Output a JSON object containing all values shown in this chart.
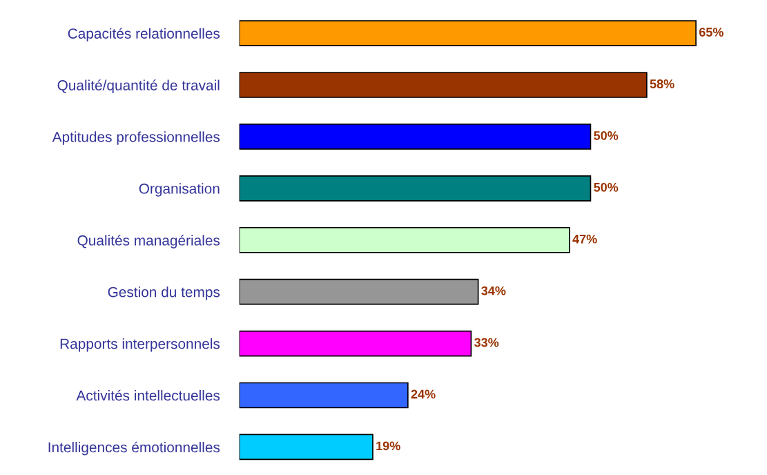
{
  "chart_data": {
    "type": "bar",
    "orientation": "horizontal",
    "categories": [
      "Capacités relationnelles",
      "Qualité/quantité de travail",
      "Aptitudes professionnelles",
      "Organisation",
      "Qualités managériales",
      "Gestion du temps",
      "Rapports interpersonnels",
      "Activités intellectuelles",
      "Intelligences émotionnelles"
    ],
    "values": [
      65,
      58,
      50,
      50,
      47,
      34,
      33,
      24,
      19
    ],
    "value_labels": [
      "65%",
      "58%",
      "50%",
      "50%",
      "47%",
      "34%",
      "33%",
      "24%",
      "19%"
    ],
    "colors": [
      "#ff9900",
      "#993300",
      "#0000ff",
      "#008080",
      "#ccffcc",
      "#969696",
      "#ff00ff",
      "#3366ff",
      "#00ccff"
    ],
    "grid": false,
    "legend": false
  }
}
